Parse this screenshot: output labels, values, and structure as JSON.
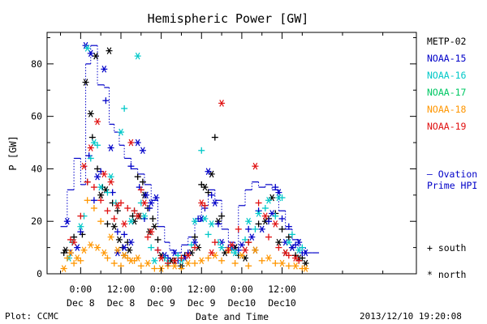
{
  "chart_data": {
    "type": "scatter",
    "title": "Hemispheric Power [GW]",
    "ylabel": "P [GW]",
    "xlabel": "Date and Time",
    "ylim": [
      0,
      92
    ],
    "xlim_hours": [
      -10,
      100
    ],
    "yticks": [
      0,
      20,
      40,
      60,
      80
    ],
    "xticks": [
      {
        "hour": 0,
        "time": "0:00",
        "date": "Dec 8"
      },
      {
        "hour": 12,
        "time": "12:00",
        "date": "Dec 8"
      },
      {
        "hour": 24,
        "time": "0:00",
        "date": "Dec 9"
      },
      {
        "hour": 36,
        "time": "12:00",
        "date": "Dec 9"
      },
      {
        "hour": 48,
        "time": "0:00",
        "date": "Dec10"
      },
      {
        "hour": 60,
        "time": "12:00",
        "date": "Dec10"
      }
    ],
    "series": [
      {
        "name": "METP-02",
        "color": "#000000",
        "north": [
          [
            -4.5,
            9
          ],
          [
            1.5,
            73
          ],
          [
            3,
            61
          ],
          [
            4.5,
            83
          ],
          [
            6,
            30
          ],
          [
            7.5,
            32
          ],
          [
            8.5,
            85
          ],
          [
            10,
            18
          ],
          [
            11.5,
            13
          ],
          [
            13,
            7
          ],
          [
            14.5,
            9
          ],
          [
            16,
            20
          ],
          [
            17.5,
            22
          ],
          [
            19,
            30
          ],
          [
            20.5,
            16
          ],
          [
            22,
            18
          ],
          [
            24,
            7
          ],
          [
            27,
            5
          ],
          [
            30,
            3
          ],
          [
            33,
            8
          ],
          [
            35,
            10
          ],
          [
            37,
            33
          ],
          [
            39,
            38
          ],
          [
            41,
            20
          ],
          [
            43,
            8
          ],
          [
            46,
            10
          ],
          [
            49,
            6
          ],
          [
            52,
            9
          ],
          [
            55,
            20
          ],
          [
            57,
            29
          ],
          [
            59,
            12
          ],
          [
            61,
            8
          ],
          [
            63,
            10
          ],
          [
            65,
            6
          ],
          [
            67,
            4
          ]
        ],
        "south": [
          [
            -5,
            8
          ],
          [
            -2,
            14
          ],
          [
            0.5,
            15
          ],
          [
            2,
            35
          ],
          [
            3.5,
            52
          ],
          [
            5,
            40
          ],
          [
            6.5,
            33
          ],
          [
            8,
            19
          ],
          [
            9.5,
            27
          ],
          [
            11,
            24
          ],
          [
            12.5,
            10
          ],
          [
            14,
            12
          ],
          [
            15.5,
            22
          ],
          [
            17,
            37
          ],
          [
            18.5,
            35
          ],
          [
            20,
            25
          ],
          [
            21.5,
            21
          ],
          [
            23,
            13
          ],
          [
            25,
            6
          ],
          [
            28,
            5
          ],
          [
            31,
            7
          ],
          [
            34,
            14
          ],
          [
            36,
            34
          ],
          [
            38,
            31
          ],
          [
            40,
            52
          ],
          [
            42,
            22
          ],
          [
            44,
            9
          ],
          [
            47,
            7
          ],
          [
            50,
            12
          ],
          [
            53,
            19
          ],
          [
            56,
            21
          ],
          [
            58,
            23
          ],
          [
            60,
            17
          ],
          [
            62,
            14
          ],
          [
            64,
            7
          ],
          [
            66,
            6
          ]
        ]
      },
      {
        "name": "NOAA-15",
        "color": "#0000c8",
        "north": [
          [
            -4,
            20
          ],
          [
            -1,
            10
          ],
          [
            1.5,
            87
          ],
          [
            3,
            84
          ],
          [
            5,
            37
          ],
          [
            7,
            78
          ],
          [
            9,
            48
          ],
          [
            11,
            8
          ],
          [
            13,
            10
          ],
          [
            15,
            12
          ],
          [
            17,
            50
          ],
          [
            18.5,
            47
          ],
          [
            19.5,
            30
          ],
          [
            21,
            27
          ],
          [
            22.5,
            29
          ],
          [
            25,
            7
          ],
          [
            28,
            8
          ],
          [
            31,
            6
          ],
          [
            34,
            12
          ],
          [
            36,
            21
          ],
          [
            38,
            39
          ],
          [
            40,
            27
          ],
          [
            42,
            12
          ],
          [
            45,
            10
          ],
          [
            48,
            11
          ],
          [
            51,
            14
          ],
          [
            54,
            17
          ],
          [
            57,
            23
          ],
          [
            59,
            31
          ],
          [
            61,
            12
          ],
          [
            63,
            10
          ],
          [
            65,
            12
          ],
          [
            67,
            8
          ]
        ],
        "south": [
          [
            -3,
            8
          ],
          [
            0,
            16
          ],
          [
            2.5,
            45
          ],
          [
            4,
            28
          ],
          [
            6,
            39
          ],
          [
            7.5,
            66
          ],
          [
            9.5,
            31
          ],
          [
            11,
            16
          ],
          [
            13,
            15
          ],
          [
            15,
            41
          ],
          [
            17.5,
            33
          ],
          [
            19,
            21
          ],
          [
            20.5,
            25
          ],
          [
            23,
            9
          ],
          [
            26,
            6
          ],
          [
            29,
            5
          ],
          [
            32,
            8
          ],
          [
            35,
            21
          ],
          [
            37,
            25
          ],
          [
            39,
            30
          ],
          [
            41,
            19
          ],
          [
            44,
            10
          ],
          [
            47,
            9
          ],
          [
            50,
            17
          ],
          [
            53,
            24
          ],
          [
            56,
            20
          ],
          [
            58,
            33
          ],
          [
            60,
            21
          ],
          [
            62,
            18
          ],
          [
            64,
            11
          ],
          [
            66,
            8
          ]
        ]
      },
      {
        "name": "NOAA-16",
        "color": "#00c8c8",
        "north": [
          [
            -3.5,
            6
          ],
          [
            0,
            18
          ],
          [
            2,
            86
          ],
          [
            4,
            50
          ],
          [
            6,
            33
          ],
          [
            9,
            37
          ],
          [
            12,
            54
          ],
          [
            15,
            20
          ],
          [
            17,
            83
          ],
          [
            19,
            22
          ],
          [
            22,
            5
          ],
          [
            26,
            4
          ],
          [
            30,
            5
          ],
          [
            34,
            20
          ],
          [
            37,
            21
          ],
          [
            39,
            19
          ],
          [
            42,
            10
          ],
          [
            46,
            8
          ],
          [
            50,
            20
          ],
          [
            53,
            23
          ],
          [
            56,
            28
          ],
          [
            59,
            29
          ],
          [
            62,
            12
          ],
          [
            65,
            9
          ]
        ],
        "south": [
          [
            -2.5,
            12
          ],
          [
            1,
            22
          ],
          [
            3,
            44
          ],
          [
            5,
            49
          ],
          [
            8,
            31
          ],
          [
            10.5,
            27
          ],
          [
            13,
            63
          ],
          [
            16,
            24
          ],
          [
            18,
            27
          ],
          [
            21,
            10
          ],
          [
            25,
            6
          ],
          [
            29,
            7
          ],
          [
            33,
            11
          ],
          [
            36,
            47
          ],
          [
            38,
            15
          ],
          [
            41,
            12
          ],
          [
            45,
            9
          ],
          [
            49,
            13
          ],
          [
            52,
            17
          ],
          [
            55,
            25
          ],
          [
            58,
            22
          ],
          [
            60,
            29
          ],
          [
            63,
            15
          ],
          [
            66,
            10
          ]
        ]
      },
      {
        "name": "NOAA-17",
        "color": "#00c864",
        "north": [],
        "south": []
      },
      {
        "name": "NOAA-18",
        "color": "#ff9600",
        "north": [
          [
            -5,
            2
          ],
          [
            -3,
            8
          ],
          [
            -1,
            6
          ],
          [
            1,
            9
          ],
          [
            3,
            11
          ],
          [
            5,
            10
          ],
          [
            7,
            8
          ],
          [
            9,
            14
          ],
          [
            11,
            9
          ],
          [
            13,
            7
          ],
          [
            15,
            5
          ],
          [
            17,
            6
          ],
          [
            20,
            4
          ],
          [
            24,
            2
          ],
          [
            28,
            3
          ],
          [
            32,
            4
          ],
          [
            36,
            5
          ],
          [
            40,
            7
          ],
          [
            44,
            9
          ],
          [
            48,
            7
          ],
          [
            52,
            9
          ],
          [
            56,
            6
          ],
          [
            60,
            4
          ],
          [
            64,
            3
          ],
          [
            67,
            2
          ]
        ],
        "south": [
          [
            -4,
            6
          ],
          [
            -2,
            4
          ],
          [
            0,
            5
          ],
          [
            2,
            28
          ],
          [
            4,
            25
          ],
          [
            6,
            20
          ],
          [
            8,
            6
          ],
          [
            10,
            4
          ],
          [
            12,
            3
          ],
          [
            14,
            6
          ],
          [
            16,
            5
          ],
          [
            18,
            3
          ],
          [
            22,
            2
          ],
          [
            26,
            3
          ],
          [
            30,
            2
          ],
          [
            34,
            4
          ],
          [
            38,
            6
          ],
          [
            42,
            5
          ],
          [
            46,
            4
          ],
          [
            50,
            3
          ],
          [
            54,
            5
          ],
          [
            58,
            4
          ],
          [
            62,
            3
          ],
          [
            66,
            2
          ]
        ]
      },
      {
        "name": "NOAA-19",
        "color": "#e01010",
        "north": [
          [
            -2,
            12
          ],
          [
            1,
            41
          ],
          [
            3,
            48
          ],
          [
            5,
            58
          ],
          [
            7,
            38
          ],
          [
            9,
            35
          ],
          [
            11,
            26
          ],
          [
            13,
            19
          ],
          [
            15,
            50
          ],
          [
            17,
            22
          ],
          [
            19,
            27
          ],
          [
            21,
            16
          ],
          [
            24,
            6
          ],
          [
            28,
            5
          ],
          [
            32,
            7
          ],
          [
            36,
            27
          ],
          [
            39,
            8
          ],
          [
            42,
            65
          ],
          [
            45,
            11
          ],
          [
            49,
            9
          ],
          [
            52,
            41
          ],
          [
            55,
            22
          ],
          [
            58,
            19
          ],
          [
            61,
            8
          ],
          [
            64,
            6
          ]
        ],
        "south": [
          [
            -3,
            13
          ],
          [
            0,
            22
          ],
          [
            2,
            35
          ],
          [
            4,
            33
          ],
          [
            6,
            28
          ],
          [
            8,
            24
          ],
          [
            10,
            21
          ],
          [
            12,
            27
          ],
          [
            14,
            25
          ],
          [
            16,
            24
          ],
          [
            18,
            32
          ],
          [
            20,
            14
          ],
          [
            23,
            9
          ],
          [
            26,
            4
          ],
          [
            30,
            6
          ],
          [
            34,
            10
          ],
          [
            37,
            26
          ],
          [
            40,
            12
          ],
          [
            44,
            9
          ],
          [
            47,
            17
          ],
          [
            50,
            12
          ],
          [
            53,
            27
          ],
          [
            56,
            14
          ],
          [
            59,
            10
          ],
          [
            62,
            7
          ],
          [
            65,
            5
          ]
        ]
      }
    ],
    "ovation": {
      "name": "Ovation",
      "name2": "Prime HPI",
      "color": "#0000c8",
      "steps": [
        [
          -6,
          18
        ],
        [
          -4,
          32
        ],
        [
          -2,
          44
        ],
        [
          0,
          34
        ],
        [
          1.5,
          80
        ],
        [
          3,
          87
        ],
        [
          5,
          72
        ],
        [
          7,
          71
        ],
        [
          8.5,
          57
        ],
        [
          10,
          54
        ],
        [
          11.5,
          49
        ],
        [
          13,
          44
        ],
        [
          15,
          40
        ],
        [
          17,
          38
        ],
        [
          19,
          34
        ],
        [
          21,
          28
        ],
        [
          23,
          18
        ],
        [
          25,
          12
        ],
        [
          26.5,
          9
        ],
        [
          28,
          8
        ],
        [
          30,
          11
        ],
        [
          32,
          14
        ],
        [
          34,
          20
        ],
        [
          36,
          26
        ],
        [
          38,
          32
        ],
        [
          40,
          28
        ],
        [
          42,
          17
        ],
        [
          44,
          12
        ],
        [
          46,
          10
        ],
        [
          47,
          26
        ],
        [
          49,
          32
        ],
        [
          51,
          35
        ],
        [
          53,
          33
        ],
        [
          55,
          34
        ],
        [
          57,
          32
        ],
        [
          59,
          24
        ],
        [
          61,
          17
        ],
        [
          63,
          13
        ],
        [
          65,
          10
        ],
        [
          67,
          8
        ],
        [
          69,
          8
        ]
      ]
    },
    "markers": {
      "south": "+ south",
      "north": "* north"
    }
  },
  "footer": {
    "left": "Plot: CCMC",
    "right": "2013/12/10 19:20:08"
  }
}
